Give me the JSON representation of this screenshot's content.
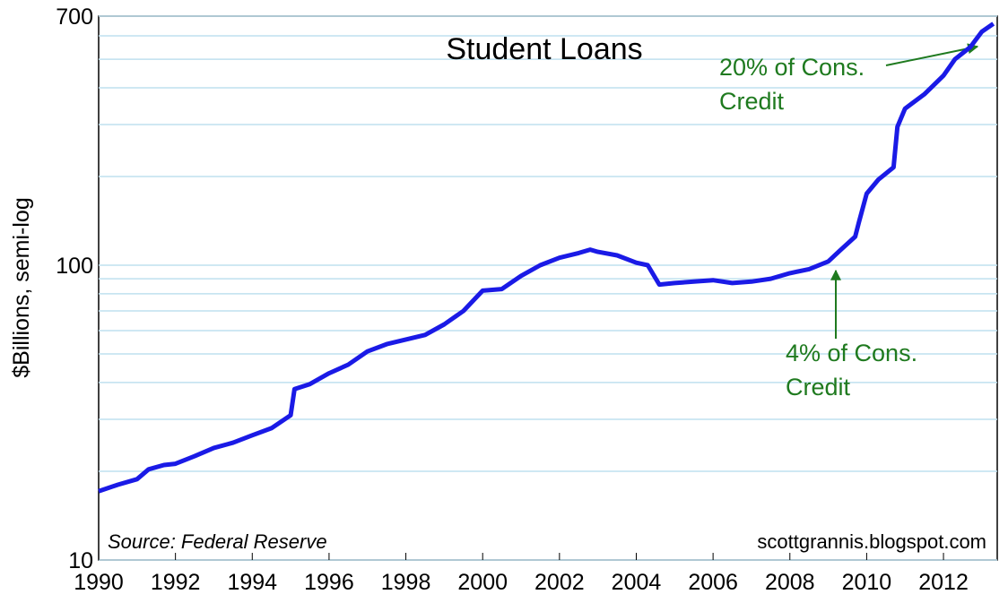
{
  "chart_data": {
    "type": "line",
    "title": "Student Loans",
    "y_label": "$Billions, semi-log",
    "x": [
      1990.0,
      1990.5,
      1991.0,
      1991.3,
      1991.7,
      1992.0,
      1992.5,
      1993.0,
      1993.5,
      1994.0,
      1994.5,
      1995.0,
      1995.1,
      1995.5,
      1996.0,
      1996.5,
      1997.0,
      1997.5,
      1998.0,
      1998.5,
      1999.0,
      1999.5,
      2000.0,
      2000.5,
      2001.0,
      2001.5,
      2002.0,
      2002.5,
      2002.8,
      2003.0,
      2003.5,
      2004.0,
      2004.3,
      2004.6,
      2005.0,
      2005.5,
      2006.0,
      2006.5,
      2007.0,
      2007.5,
      2008.0,
      2008.5,
      2009.0,
      2009.3,
      2009.7,
      2009.8,
      2010.0,
      2010.3,
      2010.7,
      2010.8,
      2011.0,
      2011.5,
      2012.0,
      2012.3,
      2012.7,
      2013.0,
      2013.3
    ],
    "series": [
      {
        "name": "Student Loans",
        "color": "#1a1ae6",
        "values": [
          17.1,
          18,
          18.8,
          20.3,
          21,
          21.2,
          22.5,
          24,
          25,
          26.5,
          28,
          31,
          38,
          39.5,
          43,
          46,
          51,
          54,
          56,
          58,
          63,
          70,
          82,
          83,
          92,
          100,
          106,
          110,
          113,
          111,
          108,
          102,
          100,
          86,
          87,
          88,
          89,
          87,
          88,
          90,
          94,
          97,
          103,
          112,
          125,
          140,
          175,
          195,
          215,
          295,
          340,
          380,
          440,
          500,
          550,
          620,
          660
        ]
      }
    ],
    "xlim": [
      1990,
      2013.4
    ],
    "ylim": [
      10,
      700
    ],
    "log_scale": true,
    "xticks": [
      1990,
      1992,
      1994,
      1996,
      1998,
      2000,
      2002,
      2004,
      2006,
      2008,
      2010,
      2012
    ],
    "yticks": [
      10,
      100,
      700
    ],
    "minor_grid": [
      20,
      30,
      40,
      50,
      60,
      70,
      80,
      90,
      200,
      300,
      400,
      500,
      600
    ],
    "grid_color": "#bfe0ef",
    "annotations": [
      {
        "lines": [
          "20% of Cons.",
          "Credit"
        ]
      },
      {
        "lines": [
          "4% of Cons.",
          "Credit"
        ]
      }
    ],
    "source": "Source: Federal Reserve",
    "credit": "scottgrannis.blogspot.com"
  }
}
